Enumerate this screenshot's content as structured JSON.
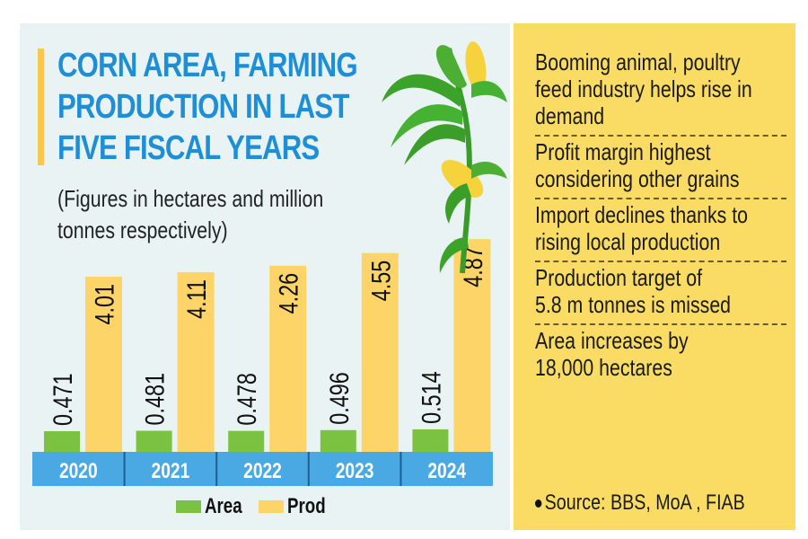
{
  "header": {
    "title_lines": [
      "CORN AREA, FARMING",
      "PRODUCTION IN LAST",
      "FIVE FISCAL YEARS"
    ],
    "subtitle_lines": [
      "(Figures in hectares and million",
      "tonnes respectively)"
    ]
  },
  "colors": {
    "title": "#1e8fd6",
    "area": "#7cc242",
    "prod": "#fcd468",
    "year_bar": "#4aa8e2",
    "panel_left": "#eaf3f3",
    "panel_right": "#fadc64",
    "accent_bar": "#f7c84c"
  },
  "chart_data": {
    "type": "bar",
    "title": "CORN AREA, FARMING PRODUCTION IN LAST FIVE FISCAL YEARS",
    "subtitle": "(Figures in hectares and million tonnes respectively)",
    "categories": [
      "2020",
      "2021",
      "2022",
      "2023",
      "2024"
    ],
    "series": [
      {
        "name": "Area",
        "values": [
          0.471,
          0.481,
          0.478,
          0.496,
          0.514
        ],
        "labels": [
          "0.471",
          "0.481",
          "0.478",
          "0.496",
          "0.514"
        ]
      },
      {
        "name": "Prod",
        "values": [
          4.01,
          4.11,
          4.26,
          4.55,
          4.87
        ],
        "labels": [
          "4.01",
          "4.11",
          "4.26",
          "4.55",
          "4.87"
        ]
      }
    ],
    "xlabel": "",
    "ylabel": "",
    "ylim": [
      0,
      5.2
    ],
    "grid": false,
    "legend_position": "bottom",
    "legend": [
      "Area",
      "Prod"
    ]
  },
  "notes": [
    {
      "lines": [
        "Booming animal, poultry",
        "feed industry helps rise in",
        "demand"
      ]
    },
    {
      "lines": [
        "Profit margin highest",
        "considering other grains"
      ]
    },
    {
      "lines": [
        "Import declines thanks to",
        "rising local production"
      ]
    },
    {
      "lines": [
        "Production target of",
        "5.8 m tonnes is missed"
      ]
    },
    {
      "lines": [
        "Area increases by",
        "18,000 hectares"
      ]
    }
  ],
  "source": "Source: BBS, MoA , FIAB"
}
